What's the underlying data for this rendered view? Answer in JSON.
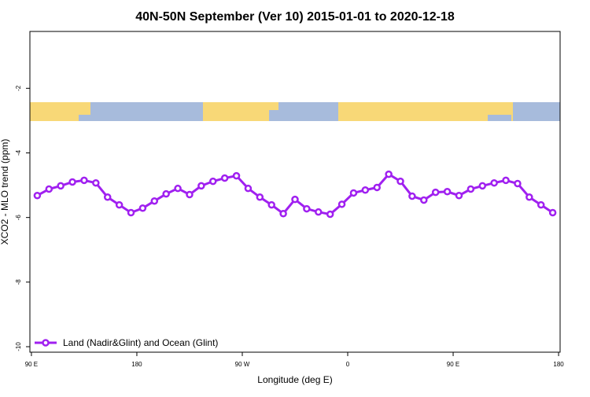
{
  "chart_data": {
    "type": "line",
    "title": "40N-50N September (Ver 10)   2015-01-01 to 2020-12-18",
    "x_label": "Longitude (deg E)",
    "y_label": "XCO2 - MLO trend (ppm)",
    "x": [
      95,
      105,
      115,
      125,
      135,
      145,
      155,
      165,
      175,
      185,
      195,
      205,
      215,
      225,
      235,
      245,
      255,
      265,
      275,
      285,
      295,
      305,
      315,
      325,
      335,
      345,
      355,
      365,
      375,
      385,
      395,
      405,
      415,
      425,
      435,
      445,
      455,
      465,
      475,
      485,
      495,
      505,
      515,
      525,
      535
    ],
    "series": [
      {
        "name": "Land (Nadir&Glint) and Ocean (Glint)",
        "color": "#a020f0",
        "values": [
          -5.32,
          -5.12,
          -5.02,
          -4.9,
          -4.85,
          -4.93,
          -5.37,
          -5.61,
          -5.85,
          -5.71,
          -5.49,
          -5.27,
          -5.1,
          -5.29,
          -5.02,
          -4.88,
          -4.78,
          -4.71,
          -5.1,
          -5.37,
          -5.61,
          -5.88,
          -5.44,
          -5.73,
          -5.83,
          -5.9,
          -5.59,
          -5.24,
          -5.15,
          -5.07,
          -4.66,
          -4.88,
          -5.34,
          -5.46,
          -5.22,
          -5.2,
          -5.32,
          -5.12,
          -5.02,
          -4.93,
          -4.85,
          -4.95,
          -5.37,
          -5.61,
          -5.85
        ]
      }
    ],
    "xlim": [
      88.7,
      541.3
    ],
    "xticks": [
      {
        "value": 90,
        "label": "90 E"
      },
      180,
      {
        "value": 270,
        "label": "90 W"
      },
      {
        "value": 360,
        "label": "0"
      },
      {
        "value": 450,
        "label": "90 E"
      },
      {
        "value": 540,
        "label": "180"
      }
    ],
    "ylim": [
      -10.17,
      -0.24
    ],
    "yticks": [
      -2,
      -4,
      -6,
      -8,
      -10
    ],
    "legend": "bottom left"
  }
}
